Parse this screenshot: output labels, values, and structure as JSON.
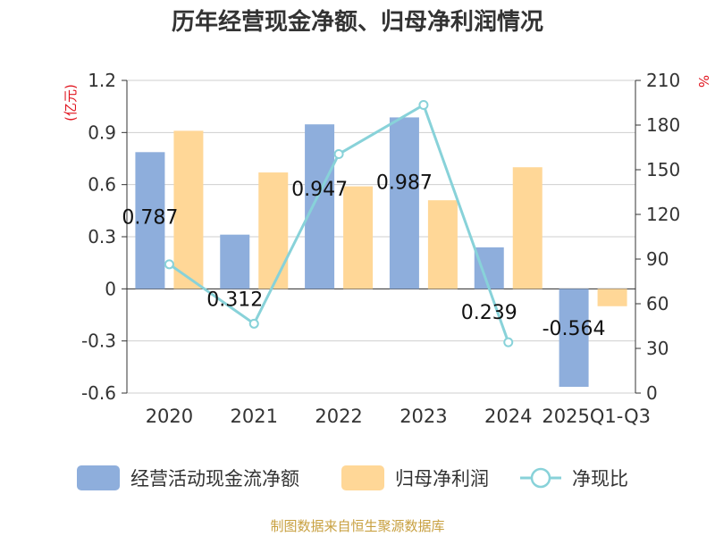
{
  "chart_data": {
    "type": "bar",
    "title": "历年经营现金净额、归母净利润情况",
    "categories": [
      "2020",
      "2021",
      "2022",
      "2023",
      "2024",
      "2025Q1-Q3"
    ],
    "series": [
      {
        "name": "经营活动现金流净额",
        "type": "bar",
        "axis": "left",
        "color": "#8eaedc",
        "values": [
          0.787,
          0.312,
          0.947,
          0.987,
          0.239,
          -0.564
        ],
        "labels": [
          "0.787",
          "0.312",
          "0.947",
          "0.987",
          "0.239",
          "-0.564"
        ]
      },
      {
        "name": "归母净利润",
        "type": "bar",
        "axis": "left",
        "color": "#ffd797",
        "values": [
          0.91,
          0.67,
          0.59,
          0.51,
          0.7,
          -0.1
        ]
      },
      {
        "name": "净现比",
        "type": "line",
        "axis": "right",
        "color": "#88d2d9",
        "values": [
          86.5,
          46.6,
          160.5,
          193.5,
          34.1,
          null
        ]
      }
    ],
    "y_left": {
      "unit": "(亿元)",
      "ylim": [
        -0.6,
        1.2
      ],
      "ticks": [
        1.2,
        0.9,
        0.6,
        0.3,
        0,
        -0.3,
        -0.6
      ],
      "tick_labels": [
        "1.2",
        "0.9",
        "0.6",
        "0.3",
        "0",
        "-0.3",
        "-0.6"
      ]
    },
    "y_right": {
      "unit": "%",
      "ylim": [
        0,
        210
      ],
      "ticks": [
        210,
        180,
        150,
        120,
        90,
        60,
        30,
        0
      ],
      "tick_labels": [
        "210",
        "180",
        "150",
        "120",
        "90",
        "60",
        "30",
        "0"
      ]
    },
    "grid": true,
    "legend_position": "bottom"
  },
  "source": "制图数据来自恒生聚源数据库"
}
